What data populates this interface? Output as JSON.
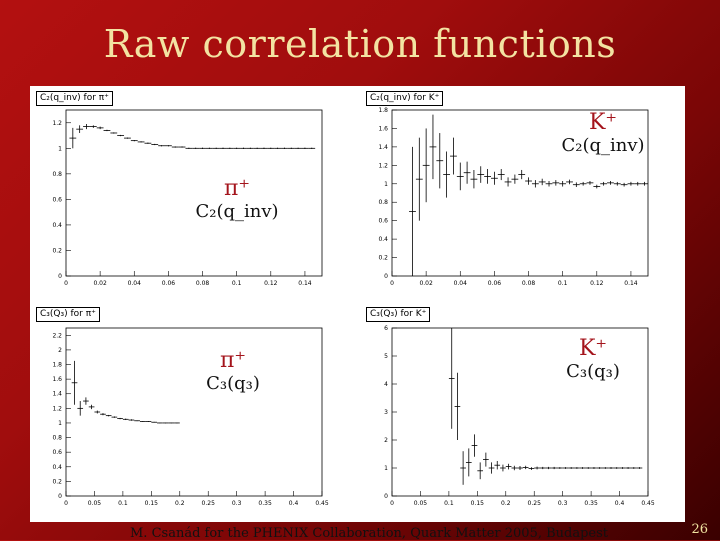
{
  "slide": {
    "title": "Raw correlation functions",
    "footer": "M. Csanád for the PHENIX Collaboration, Quark Matter 2005, Budapest",
    "page_number": "26"
  },
  "panels": {
    "c2_pi": {
      "hist_title": "C₂(q_inv) for π⁺",
      "overlay_particle": "π⁺",
      "overlay_func": "C₂(q_inv)"
    },
    "c2_k": {
      "hist_title": "C₂(q_inv) for K⁺",
      "overlay_particle": "K⁺",
      "overlay_func": "C₂(q_inv)"
    },
    "c3_pi": {
      "hist_title": "C₃(Q₃) for π⁺",
      "overlay_particle": "π⁺",
      "overlay_func": "C₃(q₃)"
    },
    "c3_k": {
      "hist_title": "C₃(Q₃) for K⁺",
      "overlay_particle": "K⁺",
      "overlay_func": "C₃(q₃)"
    }
  },
  "chart_data": [
    {
      "type": "scatter",
      "id": "c2_pi",
      "title": "C2(qinv) for π+",
      "xlim": [
        0,
        0.15
      ],
      "ylim": [
        0,
        1.3
      ],
      "xticks": [
        "0",
        "0.02",
        "0.04",
        "0.06",
        "0.08",
        "0.1",
        "0.12",
        "0.14"
      ],
      "yticks": [
        "0",
        "0.2",
        "0.4",
        "0.6",
        "0.8",
        "1",
        "1.2"
      ],
      "x": [
        0.004,
        0.008,
        0.012,
        0.016,
        0.02,
        0.024,
        0.028,
        0.032,
        0.036,
        0.04,
        0.044,
        0.048,
        0.052,
        0.056,
        0.06,
        0.064,
        0.068,
        0.072,
        0.076,
        0.08,
        0.084,
        0.088,
        0.092,
        0.096,
        0.1,
        0.104,
        0.108,
        0.112,
        0.116,
        0.12,
        0.124,
        0.128,
        0.132,
        0.136,
        0.14,
        0.144
      ],
      "y": [
        1.08,
        1.15,
        1.17,
        1.17,
        1.16,
        1.14,
        1.12,
        1.1,
        1.08,
        1.06,
        1.05,
        1.04,
        1.03,
        1.02,
        1.02,
        1.01,
        1.01,
        1.0,
        1.0,
        1.0,
        1.0,
        1.0,
        1.0,
        1.0,
        1.0,
        1.0,
        1.0,
        1.0,
        1.0,
        1.0,
        1.0,
        1.0,
        1.0,
        1.0,
        1.0,
        1.0
      ],
      "yerr": [
        0.08,
        0.03,
        0.02,
        0.01,
        0.01,
        0.005,
        0.005,
        0.005,
        0.005,
        0.005,
        0.005,
        0.005,
        0.005,
        0.005,
        0.005,
        0.005,
        0.005,
        0.005,
        0.005,
        0.005,
        0.005,
        0.005,
        0.005,
        0.005,
        0.005,
        0.005,
        0.005,
        0.005,
        0.005,
        0.005,
        0.005,
        0.005,
        0.005,
        0.005,
        0.005,
        0.005
      ]
    },
    {
      "type": "scatter",
      "id": "c2_k",
      "title": "C2(qinv) for K+",
      "xlim": [
        0,
        0.15
      ],
      "ylim": [
        0,
        1.8
      ],
      "xticks": [
        "0",
        "0.02",
        "0.04",
        "0.06",
        "0.08",
        "0.1",
        "0.12",
        "0.14"
      ],
      "yticks": [
        "0",
        "0.2",
        "0.4",
        "0.6",
        "0.8",
        "1",
        "1.2",
        "1.4",
        "1.6",
        "1.8"
      ],
      "x": [
        0.012,
        0.016,
        0.02,
        0.024,
        0.028,
        0.032,
        0.036,
        0.04,
        0.044,
        0.048,
        0.052,
        0.056,
        0.06,
        0.064,
        0.068,
        0.072,
        0.076,
        0.08,
        0.084,
        0.088,
        0.092,
        0.096,
        0.1,
        0.104,
        0.108,
        0.112,
        0.116,
        0.12,
        0.124,
        0.128,
        0.132,
        0.136,
        0.14,
        0.144,
        0.148
      ],
      "y": [
        0.7,
        1.05,
        1.2,
        1.4,
        1.25,
        1.1,
        1.3,
        1.08,
        1.12,
        1.05,
        1.1,
        1.08,
        1.06,
        1.1,
        1.02,
        1.05,
        1.1,
        1.03,
        1.0,
        1.02,
        1.0,
        1.01,
        1.0,
        1.02,
        0.99,
        1.0,
        1.01,
        0.97,
        1.0,
        1.01,
        1.0,
        0.99,
        1.0,
        1.0,
        1.0
      ],
      "yerr": [
        0.7,
        0.45,
        0.4,
        0.35,
        0.3,
        0.25,
        0.2,
        0.15,
        0.12,
        0.1,
        0.09,
        0.08,
        0.07,
        0.06,
        0.05,
        0.05,
        0.05,
        0.04,
        0.04,
        0.035,
        0.03,
        0.03,
        0.03,
        0.025,
        0.025,
        0.02,
        0.02,
        0.02,
        0.02,
        0.02,
        0.02,
        0.02,
        0.02,
        0.02,
        0.02
      ]
    },
    {
      "type": "scatter",
      "id": "c3_pi",
      "title": "C3(Q3) for π+",
      "xlim": [
        0,
        0.45
      ],
      "ylim": [
        0,
        2.3
      ],
      "xticks": [
        "0",
        "0.05",
        "0.1",
        "0.15",
        "0.2",
        "0.25",
        "0.3",
        "0.35",
        "0.4",
        "0.45"
      ],
      "yticks": [
        "0",
        "0.2",
        "0.4",
        "0.6",
        "0.8",
        "1",
        "1.2",
        "1.4",
        "1.6",
        "1.8",
        "2",
        "2.2"
      ],
      "x": [
        0.015,
        0.025,
        0.035,
        0.045,
        0.055,
        0.065,
        0.075,
        0.085,
        0.095,
        0.105,
        0.115,
        0.125,
        0.135,
        0.145,
        0.155,
        0.165,
        0.175,
        0.185,
        0.195
      ],
      "y": [
        1.55,
        1.2,
        1.3,
        1.22,
        1.15,
        1.12,
        1.1,
        1.08,
        1.06,
        1.05,
        1.04,
        1.03,
        1.02,
        1.02,
        1.01,
        1.0,
        1.0,
        1.0,
        1.0
      ],
      "yerr": [
        0.3,
        0.1,
        0.05,
        0.03,
        0.02,
        0.015,
        0.01,
        0.01,
        0.01,
        0.01,
        0.01,
        0.005,
        0.005,
        0.005,
        0.005,
        0.005,
        0.005,
        0.005,
        0.005
      ]
    },
    {
      "type": "scatter",
      "id": "c3_k",
      "title": "C3(Q3) for K+",
      "xlim": [
        0,
        0.45
      ],
      "ylim": [
        0,
        6
      ],
      "xticks": [
        "0",
        "0.05",
        "0.1",
        "0.15",
        "0.2",
        "0.25",
        "0.3",
        "0.35",
        "0.4",
        "0.45"
      ],
      "yticks": [
        "0",
        "1",
        "2",
        "3",
        "4",
        "5",
        "6"
      ],
      "x": [
        0.105,
        0.115,
        0.125,
        0.135,
        0.145,
        0.155,
        0.165,
        0.175,
        0.185,
        0.195,
        0.205,
        0.215,
        0.225,
        0.235,
        0.245,
        0.255,
        0.265,
        0.275,
        0.285,
        0.295,
        0.305,
        0.315,
        0.325,
        0.335,
        0.345,
        0.355,
        0.365,
        0.375,
        0.385,
        0.395,
        0.405,
        0.415,
        0.425,
        0.435
      ],
      "y": [
        4.2,
        3.2,
        1.0,
        1.2,
        1.8,
        0.9,
        1.3,
        1.0,
        1.1,
        1.0,
        1.05,
        1.0,
        1.0,
        1.02,
        0.98,
        1.0,
        1.0,
        1.0,
        1.0,
        1.0,
        1.0,
        1.0,
        1.0,
        1.0,
        1.0,
        1.0,
        1.0,
        1.0,
        1.0,
        1.0,
        1.0,
        1.0,
        1.0,
        1.0
      ],
      "yerr": [
        1.8,
        1.2,
        0.6,
        0.5,
        0.4,
        0.3,
        0.25,
        0.2,
        0.15,
        0.12,
        0.1,
        0.08,
        0.07,
        0.06,
        0.05,
        0.05,
        0.04,
        0.04,
        0.04,
        0.03,
        0.03,
        0.03,
        0.03,
        0.03,
        0.03,
        0.03,
        0.03,
        0.03,
        0.03,
        0.03,
        0.03,
        0.03,
        0.03,
        0.03
      ]
    }
  ]
}
